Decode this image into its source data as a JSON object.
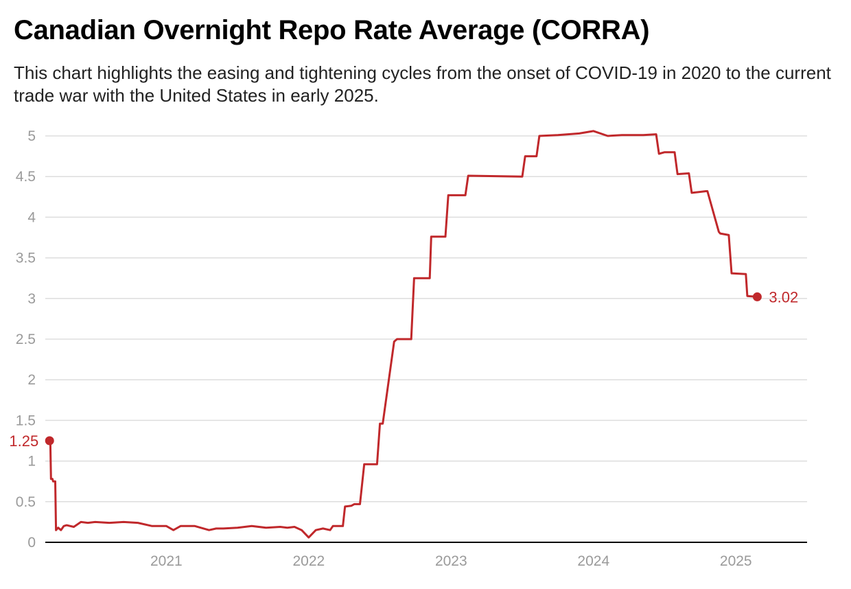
{
  "title": "Canadian Overnight Repo Rate Average (CORRA)",
  "subtitle": "This chart highlights the easing and tightening cycles from the onset of COVID-19 in 2020 to the current trade war with the United States in early 2025.",
  "colors": {
    "line": "#c0282b",
    "grid": "#dddddd",
    "axis": "#000000",
    "tick": "#9a9a9a"
  },
  "chart_data": {
    "type": "line",
    "title": "Canadian Overnight Repo Rate Average (CORRA)",
    "xlabel": "",
    "ylabel": "",
    "xlim": [
      2020.15,
      2025.5
    ],
    "ylim": [
      0,
      5
    ],
    "yticks": [
      0,
      0.5,
      1,
      1.5,
      2,
      2.5,
      3,
      3.5,
      4,
      4.5,
      5
    ],
    "ytick_labels": [
      "0",
      "0.5",
      "1",
      "1.5",
      "2",
      "2.5",
      "3",
      "3.5",
      "4",
      "4.5",
      "5"
    ],
    "xticks": [
      2021,
      2022,
      2023,
      2024,
      2025
    ],
    "xtick_labels": [
      "2021",
      "2022",
      "2023",
      "2024",
      "2025"
    ],
    "grid": true,
    "legend": "none",
    "series": [
      {
        "x": [
          2020.18,
          2020.185,
          2020.19,
          2020.2,
          2020.205,
          2020.22,
          2020.225,
          2020.24,
          2020.26,
          2020.28,
          2020.3,
          2020.35,
          2020.4,
          2020.45,
          2020.5,
          2020.6,
          2020.7,
          2020.8,
          2020.9,
          2021.0,
          2021.05,
          2021.1,
          2021.2,
          2021.3,
          2021.35,
          2021.4,
          2021.5,
          2021.6,
          2021.7,
          2021.8,
          2021.85,
          2021.9,
          2021.95,
          2022.0,
          2022.05,
          2022.1,
          2022.15,
          2022.17,
          2022.2,
          2022.24,
          2022.255,
          2022.3,
          2022.32,
          2022.36,
          2022.39,
          2022.48,
          2022.5,
          2022.52,
          2022.6,
          2022.62,
          2022.72,
          2022.74,
          2022.85,
          2022.86,
          2022.96,
          2022.98,
          2023.1,
          2023.12,
          2023.5,
          2023.52,
          2023.6,
          2023.62,
          2023.75,
          2023.9,
          2024.0,
          2024.1,
          2024.2,
          2024.35,
          2024.44,
          2024.46,
          2024.5,
          2024.57,
          2024.59,
          2024.67,
          2024.69,
          2024.79,
          2024.8,
          2024.88,
          2024.89,
          2024.95,
          2024.97,
          2025.07,
          2025.08,
          2025.15
        ],
        "y": [
          1.25,
          1.25,
          0.78,
          0.78,
          0.75,
          0.75,
          0.15,
          0.18,
          0.15,
          0.2,
          0.21,
          0.19,
          0.25,
          0.24,
          0.25,
          0.24,
          0.25,
          0.24,
          0.2,
          0.2,
          0.15,
          0.2,
          0.2,
          0.15,
          0.17,
          0.17,
          0.18,
          0.2,
          0.18,
          0.19,
          0.18,
          0.19,
          0.15,
          0.06,
          0.15,
          0.17,
          0.15,
          0.2,
          0.2,
          0.2,
          0.44,
          0.45,
          0.47,
          0.47,
          0.96,
          0.96,
          1.46,
          1.46,
          2.47,
          2.5,
          2.5,
          3.25,
          3.25,
          3.76,
          3.76,
          4.27,
          4.27,
          4.51,
          4.5,
          4.75,
          4.75,
          5.0,
          5.01,
          5.03,
          5.06,
          5.0,
          5.01,
          5.01,
          5.02,
          4.78,
          4.8,
          4.8,
          4.53,
          4.54,
          4.3,
          4.32,
          4.32,
          3.82,
          3.8,
          3.78,
          3.31,
          3.3,
          3.03,
          3.02
        ]
      }
    ],
    "annotations": [
      {
        "x": 2020.18,
        "y": 1.25,
        "text": "1.25"
      },
      {
        "x": 2025.15,
        "y": 3.02,
        "text": "3.02"
      }
    ]
  }
}
